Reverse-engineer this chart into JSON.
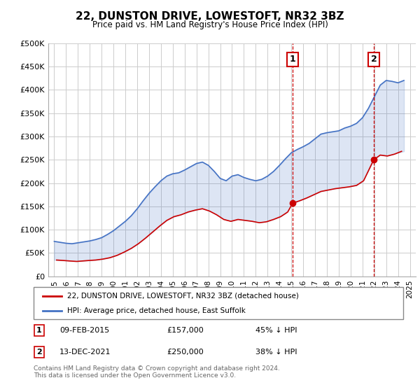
{
  "title": "22, DUNSTON DRIVE, LOWESTOFT, NR32 3BZ",
  "subtitle": "Price paid vs. HM Land Registry's House Price Index (HPI)",
  "legend_line1": "22, DUNSTON DRIVE, LOWESTOFT, NR32 3BZ (detached house)",
  "legend_line2": "HPI: Average price, detached house, East Suffolk",
  "annotation1": {
    "label": "1",
    "date": "09-FEB-2015",
    "price": "£157,000",
    "pct": "45% ↓ HPI",
    "x_year": 2015.11,
    "y_val": 157000
  },
  "annotation2": {
    "label": "2",
    "date": "13-DEC-2021",
    "price": "£250,000",
    "pct": "38% ↓ HPI",
    "x_year": 2021.95,
    "y_val": 250000
  },
  "footnote": "Contains HM Land Registry data © Crown copyright and database right 2024.\nThis data is licensed under the Open Government Licence v3.0.",
  "red_color": "#cc0000",
  "blue_color": "#4472c4",
  "hpi_years": [
    1995,
    1995.5,
    1996,
    1996.5,
    1997,
    1997.5,
    1998,
    1998.5,
    1999,
    1999.5,
    2000,
    2000.5,
    2001,
    2001.5,
    2002,
    2002.5,
    2003,
    2003.5,
    2004,
    2004.5,
    2005,
    2005.5,
    2006,
    2006.5,
    2007,
    2007.5,
    2008,
    2008.5,
    2009,
    2009.5,
    2010,
    2010.5,
    2011,
    2011.5,
    2012,
    2012.5,
    2013,
    2013.5,
    2014,
    2014.5,
    2015,
    2015.5,
    2016,
    2016.5,
    2017,
    2017.5,
    2018,
    2018.5,
    2019,
    2019.5,
    2020,
    2020.5,
    2021,
    2021.5,
    2022,
    2022.5,
    2023,
    2023.5,
    2024,
    2024.5
  ],
  "hpi_values": [
    75000,
    73000,
    71000,
    70000,
    72000,
    74000,
    76000,
    79000,
    83000,
    90000,
    98000,
    108000,
    118000,
    130000,
    145000,
    162000,
    178000,
    192000,
    205000,
    215000,
    220000,
    222000,
    228000,
    235000,
    242000,
    245000,
    238000,
    225000,
    210000,
    205000,
    215000,
    218000,
    212000,
    208000,
    205000,
    208000,
    215000,
    225000,
    238000,
    252000,
    265000,
    272000,
    278000,
    285000,
    295000,
    305000,
    308000,
    310000,
    312000,
    318000,
    322000,
    328000,
    340000,
    360000,
    385000,
    410000,
    420000,
    418000,
    415000,
    420000
  ],
  "sale_years": [
    1995.2,
    1995.8,
    1996.3,
    1996.9,
    1997.4,
    1997.9,
    1998.5,
    1999.1,
    1999.7,
    2000.3,
    2000.9,
    2001.5,
    2002.1,
    2002.7,
    2003.3,
    2003.9,
    2004.5,
    2005.1,
    2005.7,
    2006.3,
    2006.9,
    2007.5,
    2008.1,
    2008.7,
    2009.3,
    2009.9,
    2010.5,
    2011.1,
    2011.7,
    2012.3,
    2012.9,
    2013.5,
    2014.1,
    2014.7,
    2015.11,
    2015.7,
    2016.3,
    2016.9,
    2017.5,
    2018.1,
    2018.7,
    2019.3,
    2019.9,
    2020.5,
    2021.1,
    2021.95,
    2022.5,
    2023.1,
    2023.7,
    2024.3
  ],
  "sale_values": [
    35000,
    34000,
    33000,
    32000,
    33000,
    34000,
    35000,
    37000,
    40000,
    45000,
    52000,
    60000,
    70000,
    82000,
    95000,
    108000,
    120000,
    128000,
    132000,
    138000,
    142000,
    145000,
    140000,
    132000,
    122000,
    118000,
    122000,
    120000,
    118000,
    115000,
    117000,
    122000,
    128000,
    138000,
    157000,
    162000,
    168000,
    175000,
    182000,
    185000,
    188000,
    190000,
    192000,
    195000,
    205000,
    250000,
    260000,
    258000,
    262000,
    268000
  ],
  "ylim": [
    0,
    500000
  ],
  "yticks": [
    0,
    50000,
    100000,
    150000,
    200000,
    250000,
    300000,
    350000,
    400000,
    450000,
    500000
  ],
  "xlim": [
    1994.5,
    2025.5
  ],
  "xticks": [
    1995,
    1996,
    1997,
    1998,
    1999,
    2000,
    2001,
    2002,
    2003,
    2004,
    2005,
    2006,
    2007,
    2008,
    2009,
    2010,
    2011,
    2012,
    2013,
    2014,
    2015,
    2016,
    2017,
    2018,
    2019,
    2020,
    2021,
    2022,
    2023,
    2024,
    2025
  ]
}
